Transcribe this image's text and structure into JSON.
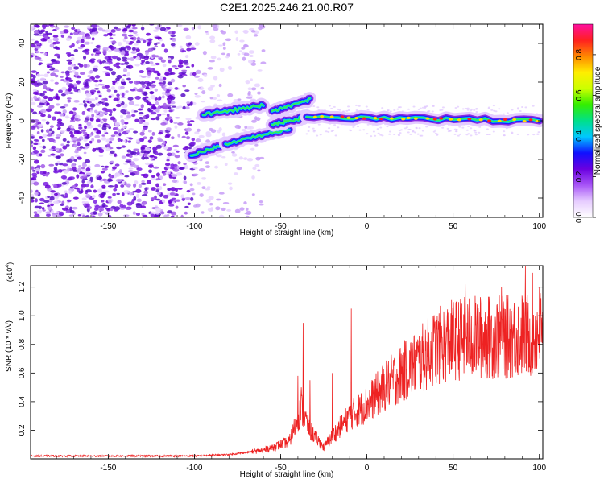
{
  "title": "C2E1.2025.246.21.00.R07",
  "spectrogram": {
    "type": "heatmap",
    "xlabel": "Height of straight line (km)",
    "ylabel": "Frequency (Hz)",
    "xlim": [
      -195,
      102
    ],
    "ylim": [
      -50,
      50
    ],
    "xticks": [
      -150,
      -100,
      -50,
      0,
      50,
      100
    ],
    "yticks": [
      -40,
      -20,
      0,
      20,
      40
    ],
    "noise_region": [
      -195,
      -75
    ],
    "signal_segments": [
      {
        "x": [
          -102,
          -75
        ],
        "y": [
          -18,
          -10
        ]
      },
      {
        "x": [
          -95,
          -60
        ],
        "y": [
          3,
          8
        ]
      },
      {
        "x": [
          -82,
          -45
        ],
        "y": [
          -12,
          -4
        ]
      },
      {
        "x": [
          -55,
          -33
        ],
        "y": [
          5,
          11
        ]
      },
      {
        "x": [
          -55,
          -35
        ],
        "y": [
          -2,
          2
        ]
      },
      {
        "x": [
          -35,
          100
        ],
        "y": [
          2,
          0
        ]
      }
    ]
  },
  "colorbar": {
    "label": "Normalized spectral amplitude",
    "ticks": [
      "0.0",
      "0.2",
      "0.4",
      "0.6",
      "0.8"
    ],
    "range": [
      0,
      0.95
    ],
    "colors": [
      "#ffffff",
      "#e6ccff",
      "#a855f7",
      "#6a00e0",
      "#1010ff",
      "#00c8ff",
      "#00e08a",
      "#33ee00",
      "#ccff00",
      "#ffee00",
      "#ff8800",
      "#ff2020",
      "#ff10a0"
    ]
  },
  "snr": {
    "type": "line",
    "xlabel": "Height of straight line (km)",
    "ylabel": "SNR (10 * v/v)",
    "multiplier_label": "(x10",
    "multiplier_exp": "4",
    "multiplier_close": ")",
    "xlim": [
      -195,
      102
    ],
    "ylim": [
      0,
      1.35
    ],
    "xticks": [
      -150,
      -100,
      -50,
      0,
      50,
      100
    ],
    "yticks": [
      0.2,
      0.4,
      0.6,
      0.8,
      1.0,
      1.2
    ],
    "color": "#ee2222",
    "trend": [
      [
        -195,
        0.02
      ],
      [
        -100,
        0.02
      ],
      [
        -80,
        0.03
      ],
      [
        -60,
        0.06
      ],
      [
        -45,
        0.12
      ],
      [
        -38,
        0.35
      ],
      [
        -33,
        0.2
      ],
      [
        -25,
        0.08
      ],
      [
        -20,
        0.16
      ],
      [
        -10,
        0.3
      ],
      [
        0,
        0.38
      ],
      [
        10,
        0.5
      ],
      [
        20,
        0.6
      ],
      [
        30,
        0.68
      ],
      [
        40,
        0.78
      ],
      [
        50,
        0.83
      ],
      [
        60,
        0.85
      ],
      [
        80,
        0.85
      ],
      [
        100,
        0.88
      ]
    ],
    "peaks": [
      [
        -40,
        0.58
      ],
      [
        -38,
        0.5
      ],
      [
        -37,
        0.95
      ],
      [
        -33,
        0.55
      ],
      [
        -20,
        0.6
      ],
      [
        -9,
        1.05
      ],
      [
        50,
        1.0
      ],
      [
        57,
        1.22
      ],
      [
        78,
        1.2
      ],
      [
        92,
        1.35
      ],
      [
        96,
        1.3
      ],
      [
        100,
        1.2
      ]
    ]
  }
}
